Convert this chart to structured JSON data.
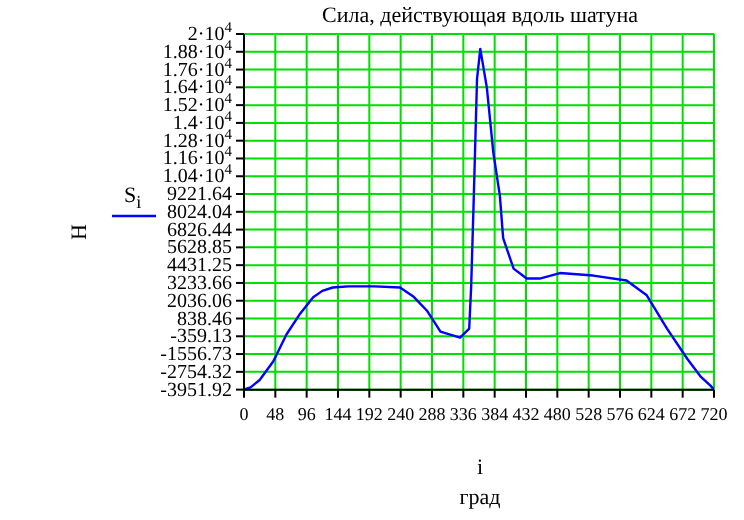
{
  "chart_data": {
    "type": "line",
    "title": "Сила, действующая вдоль шатуна",
    "xlabel": "i",
    "ylabel": "Н",
    "annotations": [
      "град"
    ],
    "series": [
      {
        "name": "S$_{i}$",
        "color": "#0000ff",
        "x": [
          0,
          10,
          24,
          45,
          65,
          85,
          106,
          120,
          136,
          160,
          200,
          239,
          260,
          280,
          301,
          331,
          345,
          348,
          352,
          357,
          362,
          372,
          382,
          392,
          397,
          413,
          433,
          453,
          484,
          535,
          586,
          617,
          648,
          679,
          700,
          715,
          720
        ],
        "values": [
          -3950,
          -3800,
          -3300,
          -2046,
          -240,
          1100,
          2268,
          2700,
          2926,
          3000,
          3000,
          2926,
          2300,
          1380,
          -40,
          -450,
          160,
          3000,
          9000,
          17000,
          19000,
          16400,
          12000,
          9100,
          6250,
          4200,
          3530,
          3530,
          3900,
          3730,
          3400,
          2400,
          160,
          -1870,
          -3100,
          -3700,
          -3950
        ]
      }
    ],
    "xlim": [
      0,
      720
    ],
    "xticks": [
      0,
      48,
      96,
      144,
      192,
      240,
      288,
      336,
      384,
      432,
      480,
      528,
      576,
      624,
      672,
      720
    ],
    "ylim": [
      -3951.92,
      20000
    ],
    "yticks": [
      -3951.92,
      -2754.32,
      -1556.73,
      -359.13,
      838.46,
      2036.06,
      3233.66,
      4431.25,
      5628.85,
      6826.44,
      8024.04,
      9221.64,
      {
        "value": 10419.23,
        "label": "1.04·10$^{4}$"
      },
      {
        "value": 11616.83,
        "label": "1.16·10$^{4}$"
      },
      {
        "value": 12814.42,
        "label": "1.28·10$^{4}$"
      },
      {
        "value": 14012.02,
        "label": "1.4·10$^{4}$"
      },
      {
        "value": 15209.61,
        "label": "1.52·10$^{4}$"
      },
      {
        "value": 16407.21,
        "label": "1.64·10$^{4}$"
      },
      {
        "value": 17604.8,
        "label": "1.76·10$^{4}$"
      },
      {
        "value": 18802.4,
        "label": "1.88·10$^{4}$"
      },
      {
        "value": 20000,
        "label": "2·10$^{4}$"
      }
    ],
    "grid": true,
    "legend": "left",
    "marker": "none",
    "line_style": "solid"
  }
}
